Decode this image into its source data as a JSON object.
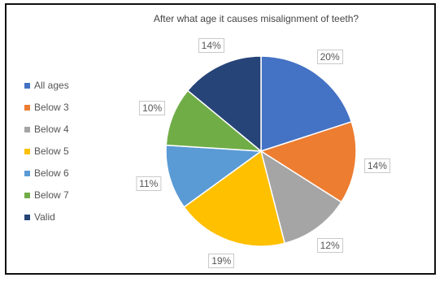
{
  "chart_data": {
    "type": "pie",
    "title": "After what age it causes misalignment of teeth?",
    "categories": [
      "All ages",
      "Below 3",
      "Below 4",
      "Below 5",
      "Below 6",
      "Below 7",
      "Valid"
    ],
    "values": [
      20,
      14,
      12,
      19,
      11,
      10,
      14
    ],
    "labels": [
      "20%",
      "14%",
      "12%",
      "19%",
      "11%",
      "10%",
      "14%"
    ],
    "colors": [
      "#4472c4",
      "#ed7d31",
      "#a5a5a5",
      "#ffc000",
      "#5b9bd5",
      "#70ad47",
      "#264478"
    ],
    "start_angle": "12 o'clock",
    "direction": "clockwise",
    "legend_position": "left"
  }
}
